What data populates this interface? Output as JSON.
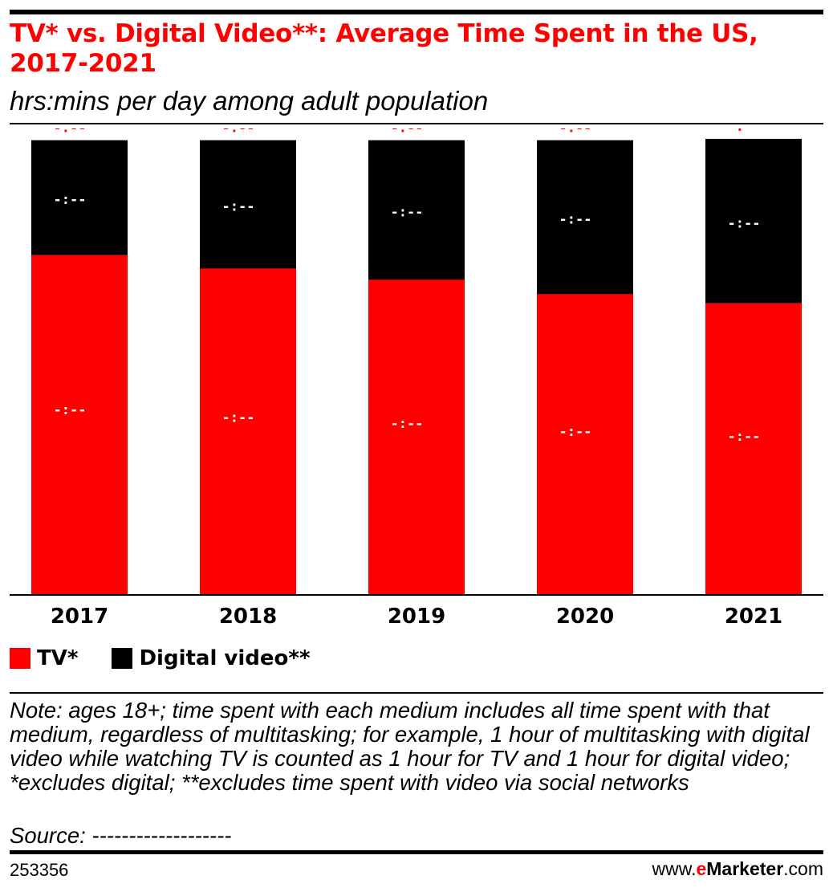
{
  "title": "TV* vs. Digital Video**: Average Time Spent in the US, 2017-2021",
  "subtitle": "hrs:mins per day among adult population",
  "colors": {
    "tv": "#ff0000",
    "digital_video": "#000000",
    "accent": "#ff0000"
  },
  "legend": [
    {
      "label": "TV*",
      "color": "#ff0000"
    },
    {
      "label": "Digital video**",
      "color": "#000000"
    }
  ],
  "chart_data": {
    "type": "bar",
    "stacked": true,
    "categories": [
      "2017",
      "2018",
      "2019",
      "2020",
      "2021"
    ],
    "series": [
      {
        "name": "TV*",
        "values": [
          0.755,
          0.725,
          0.7,
          0.668,
          0.648
        ],
        "value_labels": [
          "-:--",
          "-:--",
          "-:--",
          "-:--",
          "-:--"
        ]
      },
      {
        "name": "Digital video**",
        "values": [
          0.255,
          0.285,
          0.31,
          0.342,
          0.365
        ],
        "value_labels": [
          "-:--",
          "-:--",
          "-:--",
          "-:--",
          "-:--"
        ]
      }
    ],
    "total_labels": [
      "-:--",
      "-:--",
      "-:--",
      "-:--",
      "-:--"
    ],
    "ylim": [
      0,
      1.02
    ],
    "grid": false,
    "legend_position": "bottom-left",
    "value_scale": "share of bar height (labels masked in source)"
  },
  "note": "Note: ages 18+; time spent with each medium includes all time spent with that medium, regardless of multitasking; for example, 1 hour of multitasking with digital video while watching TV is counted as 1 hour for TV and 1 hour for digital video; *excludes digital; **excludes time spent with video via social networks",
  "source": "Source: -------------------",
  "footer": {
    "chart_id": "253356",
    "brand_prefix": "www.",
    "brand_accent": "e",
    "brand_name": "Marketer",
    "brand_suffix": ".com"
  }
}
